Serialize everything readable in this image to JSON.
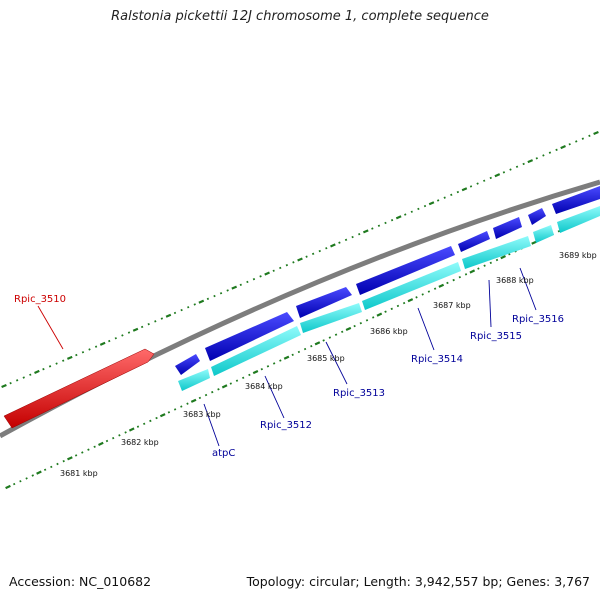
{
  "title": "Ralstonia pickettii 12J chromosome 1, complete sequence",
  "footer": {
    "accession": "Accession: NC_010682",
    "summary": "Topology: circular; Length: 3,942,557 bp; Genes: 3,767"
  },
  "colors": {
    "tick": "#1f7a1f",
    "backbone": "#8a8a8a",
    "forward_gene": "#0a0ae0",
    "reverse_gene": "#15e8ea",
    "highlight_gene": "#ee1111",
    "label_blue": "#000099",
    "label_red": "#cc0000"
  },
  "kbp_labels": [
    "3681 kbp",
    "3682 kbp",
    "3683 kbp",
    "3684 kbp",
    "3685 kbp",
    "3686 kbp",
    "3687 kbp",
    "3688 kbp",
    "3689 kbp"
  ],
  "gene_labels": [
    {
      "name": "Rpic_3510",
      "color": "red"
    },
    {
      "name": "atpC",
      "color": "blue"
    },
    {
      "name": "Rpic_3512",
      "color": "blue"
    },
    {
      "name": "Rpic_3513",
      "color": "blue"
    },
    {
      "name": "Rpic_3514",
      "color": "blue"
    },
    {
      "name": "Rpic_3515",
      "color": "blue"
    },
    {
      "name": "Rpic_3516",
      "color": "blue"
    }
  ]
}
